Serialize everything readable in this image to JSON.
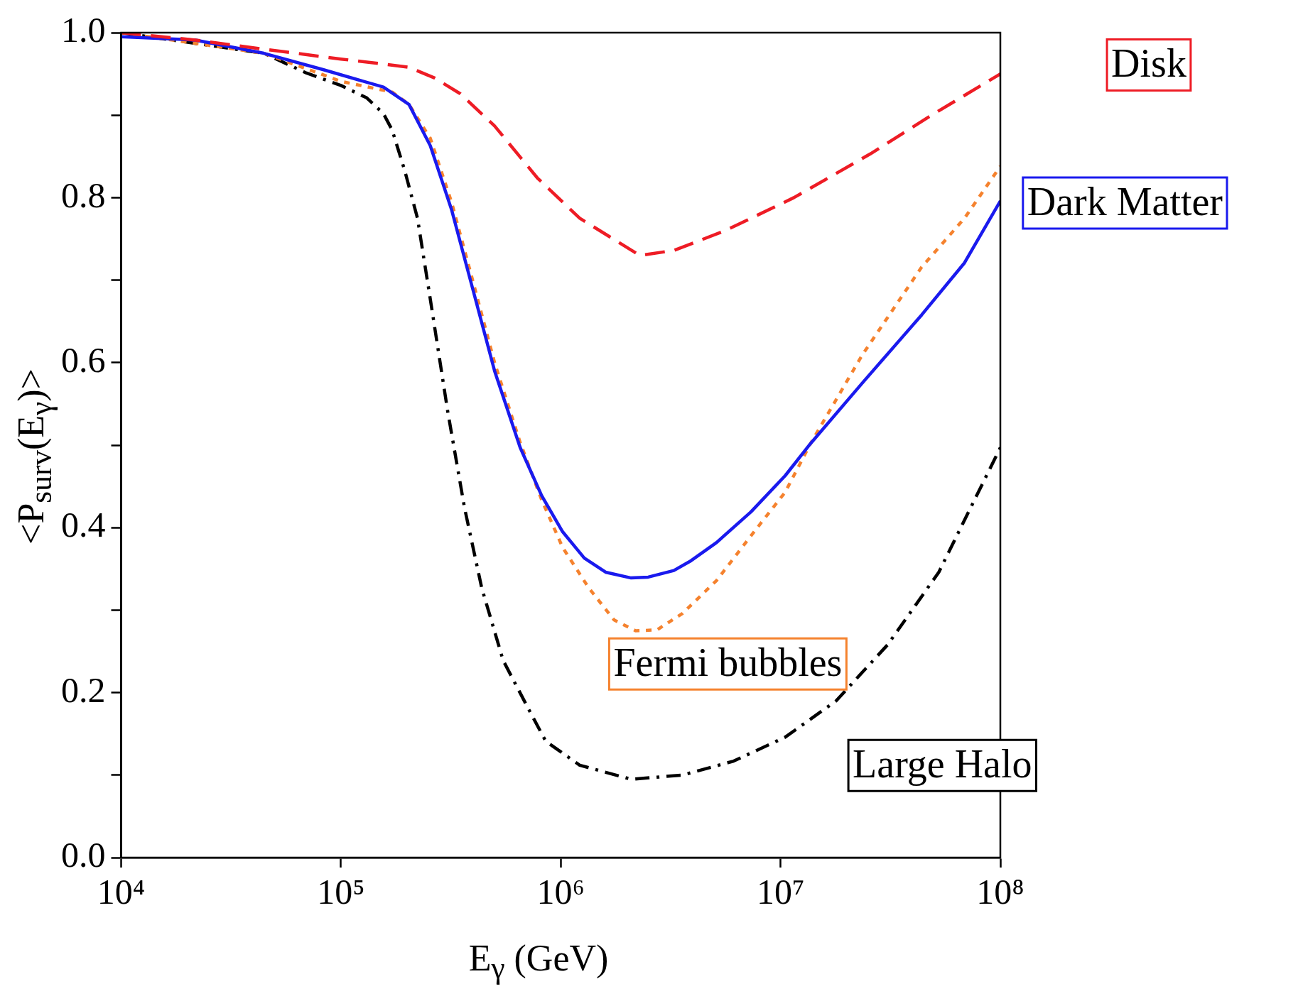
{
  "chart_data": {
    "type": "line",
    "xlabel": "E$_{γ}$  (GeV)",
    "ylabel": "<P$_{surv}$(E$_{γ}$)>",
    "log": "x",
    "xlim": [
      10000,
      100000000
    ],
    "ylim": [
      0,
      1
    ],
    "xticks": [
      {
        "value": 10000,
        "label": "10⁴"
      },
      {
        "value": 100000,
        "label": "10⁵"
      },
      {
        "value": 1000000,
        "label": "10⁶"
      },
      {
        "value": 10000000,
        "label": "10⁷"
      },
      {
        "value": 100000000,
        "label": "10⁸"
      }
    ],
    "yticks": [
      {
        "value": 0,
        "label": "0.0"
      },
      {
        "value": 0.1,
        "label": null
      },
      {
        "value": 0.2,
        "label": "0.2"
      },
      {
        "value": 0.3,
        "label": null
      },
      {
        "value": 0.4,
        "label": "0.4"
      },
      {
        "value": 0.5,
        "label": null
      },
      {
        "value": 0.6,
        "label": "0.6"
      },
      {
        "value": 0.7,
        "label": null
      },
      {
        "value": 0.8,
        "label": "0.8"
      },
      {
        "value": 0.9,
        "label": null
      },
      {
        "value": 1,
        "label": "1.0"
      }
    ],
    "grid": false,
    "legend": false,
    "marker": "none",
    "series": [
      {
        "name": "Disk",
        "color": "#ee1c25",
        "line_style": "dashed",
        "x": [
          10000,
          21800,
          44600,
          100000,
          156000,
          204000,
          267000,
          349000,
          500000,
          782000,
          1220000,
          2290000,
          3270000,
          5600000,
          11500000,
          25600000,
          48000000,
          100000000
        ],
        "values": [
          1.0,
          0.991,
          0.98,
          0.968,
          0.962,
          0.958,
          0.945,
          0.926,
          0.887,
          0.824,
          0.775,
          0.73,
          0.736,
          0.76,
          0.8,
          0.853,
          0.899,
          0.95
        ]
      },
      {
        "name": "Dark Matter",
        "color": "#1a1aee",
        "line_style": "solid",
        "x": [
          10000,
          21800,
          44600,
          83400,
          156000,
          204000,
          255000,
          319000,
          400000,
          500000,
          654000,
          818000,
          1020000,
          1280000,
          1600000,
          2090000,
          2500000,
          3270000,
          3920000,
          5120000,
          7330000,
          10500000,
          13700000,
          23500000,
          43900000,
          68700000,
          100000000
        ],
        "values": [
          0.995,
          0.991,
          0.975,
          0.955,
          0.934,
          0.913,
          0.863,
          0.785,
          0.687,
          0.59,
          0.497,
          0.439,
          0.395,
          0.363,
          0.346,
          0.339,
          0.34,
          0.348,
          0.36,
          0.382,
          0.419,
          0.463,
          0.502,
          0.575,
          0.658,
          0.721,
          0.796
        ]
      },
      {
        "name": "Fermi bubbles",
        "color": "#f5822e",
        "line_style": "dotted",
        "x": [
          10000,
          44600,
          100000,
          171000,
          204000,
          255000,
          319000,
          400000,
          500000,
          654000,
          818000,
          1020000,
          1340000,
          1750000,
          2190000,
          2740000,
          3580000,
          5120000,
          7330000,
          10500000,
          13700000,
          23500000,
          43900000,
          68700000,
          100000000
        ],
        "values": [
          1.0,
          0.975,
          0.941,
          0.928,
          0.913,
          0.872,
          0.794,
          0.697,
          0.6,
          0.503,
          0.434,
          0.376,
          0.327,
          0.288,
          0.275,
          0.276,
          0.296,
          0.336,
          0.39,
          0.443,
          0.502,
          0.609,
          0.716,
          0.775,
          0.838
        ]
      },
      {
        "name": "Large Halo",
        "color": "#000000",
        "line_style": "dashdot",
        "x": [
          10000,
          44600,
          69800,
          100000,
          131000,
          156000,
          171000,
          195000,
          223000,
          255000,
          306000,
          365000,
          437000,
          547000,
          714000,
          855000,
          1220000,
          2090000,
          3580000,
          6120000,
          10500000,
          17900000,
          30700000,
          52500000,
          100000000
        ],
        "values": [
          1.0,
          0.975,
          0.951,
          0.936,
          0.921,
          0.902,
          0.882,
          0.833,
          0.775,
          0.677,
          0.541,
          0.424,
          0.327,
          0.239,
          0.18,
          0.141,
          0.112,
          0.095,
          0.1,
          0.117,
          0.146,
          0.19,
          0.258,
          0.346,
          0.497
        ]
      }
    ]
  }
}
